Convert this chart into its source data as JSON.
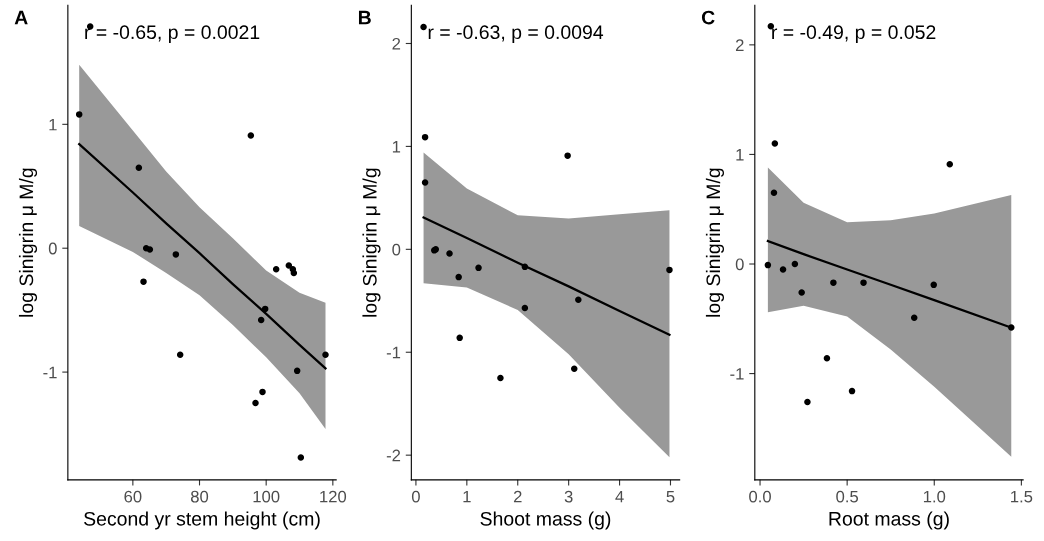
{
  "chart_data": [
    {
      "type": "scatter",
      "title": "A",
      "xlabel": "Second yr stem height (cm)",
      "ylabel": "log Sinigrin μ M/g",
      "annotations": [
        "r = -0.65, p = 0.0021"
      ],
      "xlim": [
        40.5,
        121.0
      ],
      "ylim": [
        -1.87,
        1.96
      ],
      "xticks": [
        60,
        80,
        100,
        120
      ],
      "yticks": [
        -1,
        0,
        1
      ],
      "grid": false,
      "legend": false,
      "series": [
        {
          "color": "#000000",
          "marker": "circle",
          "x": [
            43.9,
            47.2,
            95.4,
            61.8,
            64.0,
            65.1,
            72.9,
            63.2,
            74.2,
            103.0,
            106.8,
            108.0,
            108.3,
            99.7,
            98.5,
            117.8,
            109.3,
            98.9,
            96.8,
            110.4
          ],
          "values": [
            1.08,
            1.79,
            0.91,
            0.65,
            0.0,
            -0.01,
            -0.05,
            -0.27,
            -0.86,
            -0.17,
            -0.14,
            -0.17,
            -0.2,
            -0.49,
            -0.58,
            -0.86,
            -0.99,
            -1.16,
            -1.25,
            -1.69
          ]
        },
        {
          "type": "line",
          "color": "#000000",
          "x": [
            43.9,
            60,
            70,
            80,
            90,
            100,
            110,
            117.8
          ],
          "values": [
            0.84,
            0.45,
            0.2,
            -0.04,
            -0.29,
            -0.53,
            -0.78,
            -0.97
          ],
          "lower": [
            0.18,
            -0.03,
            -0.2,
            -0.38,
            -0.62,
            -0.88,
            -1.17,
            -1.46
          ],
          "upper": [
            1.48,
            0.95,
            0.62,
            0.33,
            0.08,
            -0.18,
            -0.36,
            -0.44
          ]
        }
      ]
    },
    {
      "type": "scatter",
      "title": "B",
      "xlabel": "Shoot mass (g)",
      "ylabel": "log Sinigrin μ M/g",
      "annotations": [
        "r = -0.63, p = 0.0094"
      ],
      "xlim": [
        -0.09,
        5.18
      ],
      "ylim": [
        -2.24,
        2.37
      ],
      "xticks": [
        0,
        1,
        2,
        3,
        4,
        5
      ],
      "yticks": [
        -2,
        -1,
        0,
        1,
        2
      ],
      "grid": false,
      "legend": false,
      "series": [
        {
          "color": "#000000",
          "marker": "circle",
          "x": [
            0.15,
            0.18,
            0.18,
            2.98,
            0.36,
            0.39,
            0.66,
            0.84,
            1.23,
            2.14,
            4.98,
            3.19,
            2.14,
            0.86,
            3.11,
            1.66
          ],
          "values": [
            2.16,
            1.09,
            0.65,
            0.91,
            -0.01,
            0.0,
            -0.04,
            -0.27,
            -0.18,
            -0.17,
            -0.2,
            -0.49,
            -0.57,
            -0.86,
            -1.16,
            -1.25
          ]
        },
        {
          "type": "line",
          "color": "#000000",
          "x": [
            0.15,
            1,
            2,
            3,
            4,
            4.98
          ],
          "values": [
            0.31,
            0.11,
            -0.13,
            -0.36,
            -0.6,
            -0.83
          ],
          "lower": [
            -0.33,
            -0.37,
            -0.59,
            -1.02,
            -1.54,
            -2.02
          ],
          "upper": [
            0.94,
            0.59,
            0.33,
            0.3,
            0.34,
            0.38
          ]
        }
      ]
    },
    {
      "type": "scatter",
      "title": "C",
      "xlabel": "Root mass (g)",
      "ylabel": "log Sinigrin μ M/g",
      "annotations": [
        "r = -0.49, p = 0.052"
      ],
      "xlim": [
        -0.03,
        1.51
      ],
      "ylim": [
        -1.97,
        2.36
      ],
      "xticks": [
        {
          "value": 0,
          "label": "0.0"
        },
        0.5,
        {
          "value": 1,
          "label": "1.0"
        },
        1.5
      ],
      "yticks": [
        -1,
        0,
        1,
        2
      ],
      "grid": false,
      "legend": false,
      "series": [
        {
          "color": "#000000",
          "marker": "circle",
          "x": [
            0.062,
            0.085,
            0.08,
            1.089,
            0.045,
            0.132,
            0.2,
            0.239,
            0.421,
            0.594,
            0.997,
            0.885,
            1.442,
            0.384,
            0.528,
            0.272
          ],
          "values": [
            2.17,
            1.1,
            0.65,
            0.91,
            -0.01,
            -0.05,
            0.0,
            -0.26,
            -0.17,
            -0.17,
            -0.19,
            -0.49,
            -0.58,
            -0.86,
            -1.16,
            -1.26
          ]
        },
        {
          "type": "line",
          "color": "#000000",
          "x": [
            0.045,
            0.25,
            0.5,
            0.75,
            1.0,
            1.442
          ],
          "values": [
            0.21,
            0.09,
            -0.05,
            -0.19,
            -0.33,
            -0.58
          ],
          "lower": [
            -0.44,
            -0.38,
            -0.48,
            -0.78,
            -1.12,
            -1.76
          ],
          "upper": [
            0.88,
            0.56,
            0.38,
            0.4,
            0.46,
            0.63
          ]
        }
      ]
    }
  ]
}
